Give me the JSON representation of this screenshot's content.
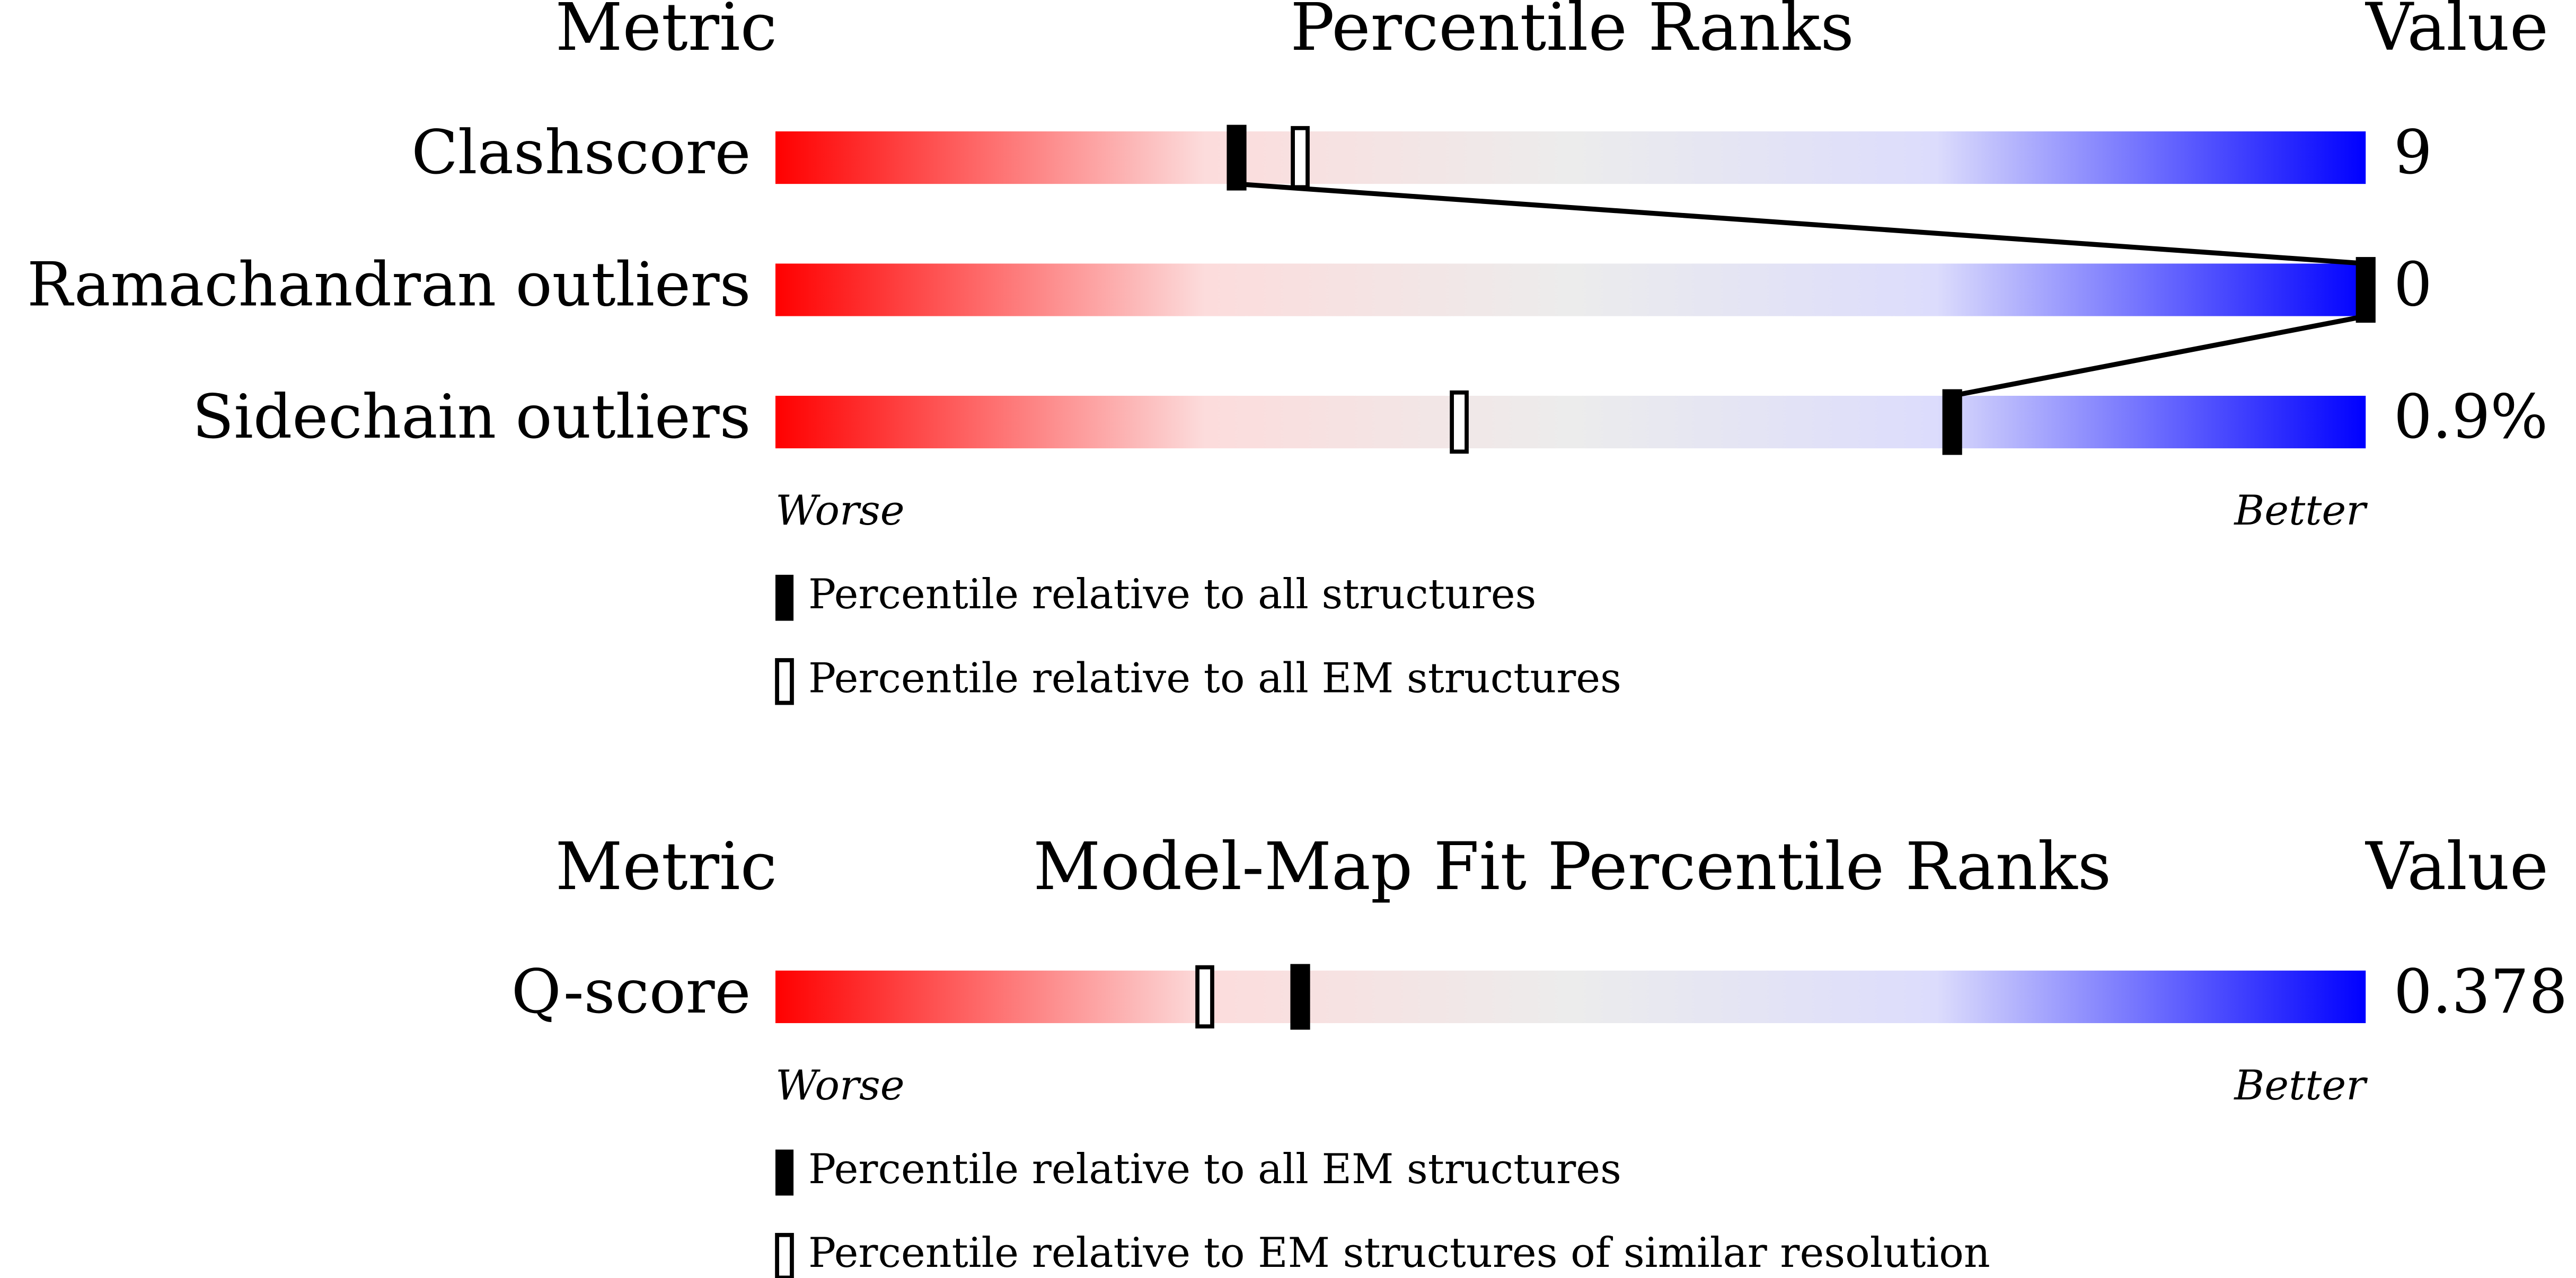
{
  "chart_data": [
    {
      "type": "percentile-slider",
      "header": {
        "metric": "Metric",
        "title": "Percentile Ranks",
        "value": "Value"
      },
      "categories": [
        "Clashscore",
        "Ramachandran outliers",
        "Sidechain outliers"
      ],
      "metric_values": [
        "9",
        "0",
        "0.9%"
      ],
      "xlim": [
        0,
        100
      ],
      "series": [
        {
          "name": "Percentile relative to all structures",
          "style": "filled",
          "values": [
            29,
            100,
            74
          ]
        },
        {
          "name": "Percentile relative to all EM structures",
          "style": "open",
          "values": [
            33,
            100,
            43
          ]
        }
      ],
      "connect_series": 0,
      "worse_label": "Worse",
      "better_label": "Better"
    },
    {
      "type": "percentile-slider",
      "header": {
        "metric": "Metric",
        "title": "Model-Map Fit Percentile Ranks",
        "value": "Value"
      },
      "categories": [
        "Q-score"
      ],
      "metric_values": [
        "0.378"
      ],
      "xlim": [
        0,
        100
      ],
      "series": [
        {
          "name": "Percentile relative to all EM structures",
          "style": "filled",
          "values": [
            33
          ]
        },
        {
          "name": "Percentile relative to EM structures of similar resolution",
          "style": "open",
          "values": [
            27
          ]
        }
      ],
      "connect_series": 0,
      "worse_label": "Worse",
      "better_label": "Better"
    }
  ]
}
